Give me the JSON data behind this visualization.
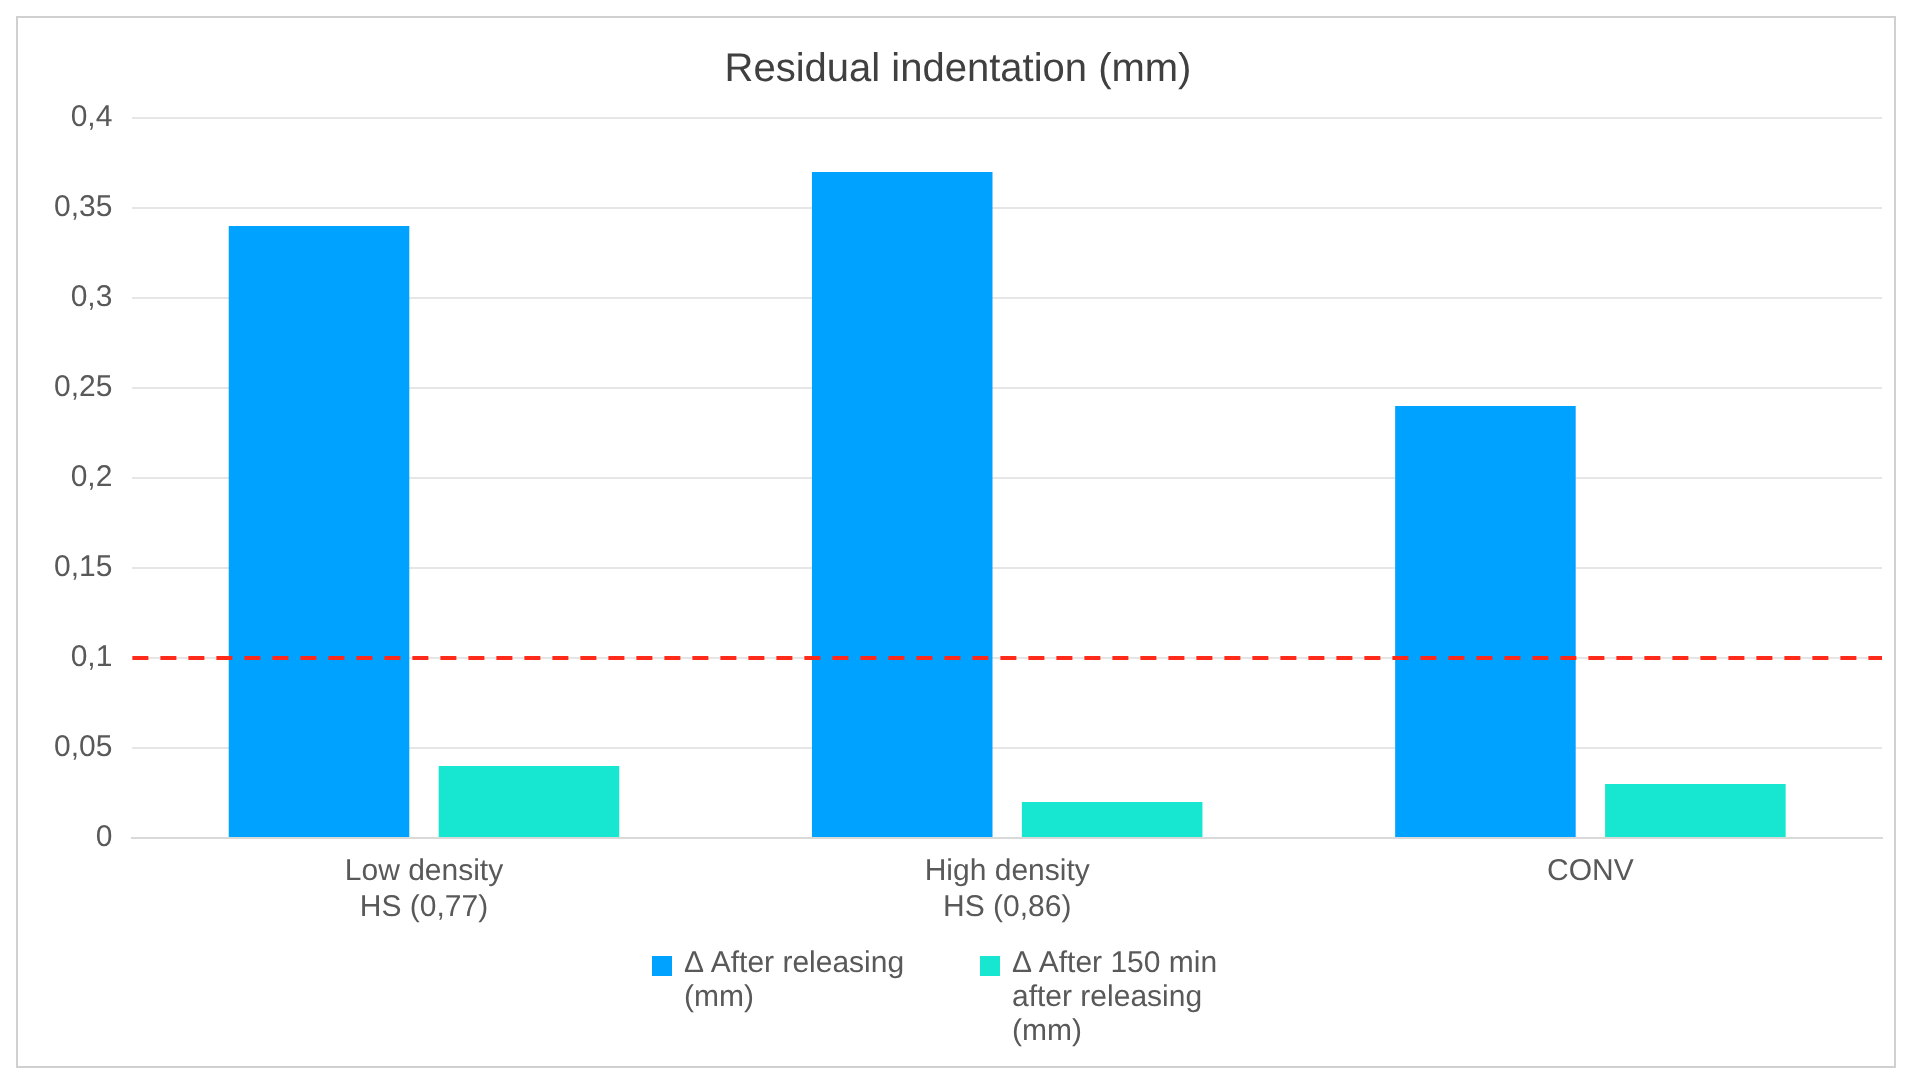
{
  "chart_data": {
    "type": "bar",
    "title": "Residual indentation (mm)",
    "categories": [
      "Low density\nHS (0,77)",
      "High density\nHS (0,86)",
      "CONV"
    ],
    "series": [
      {
        "name": "Δ After releasing (mm)",
        "color": "#00a2ff",
        "values": [
          0.34,
          0.37,
          0.24
        ]
      },
      {
        "name": "Δ After 150 min after releasing (mm)",
        "color": "#17e6d0",
        "values": [
          0.04,
          0.02,
          0.03
        ]
      }
    ],
    "ylim": [
      0,
      0.4
    ],
    "yticks": [
      {
        "value": 0,
        "label": "0"
      },
      {
        "value": 0.05,
        "label": "0,05"
      },
      {
        "value": 0.1,
        "label": "0,1"
      },
      {
        "value": 0.15,
        "label": "0,15"
      },
      {
        "value": 0.2,
        "label": "0,2"
      },
      {
        "value": 0.25,
        "label": "0,25"
      },
      {
        "value": 0.3,
        "label": "0,3"
      },
      {
        "value": 0.35,
        "label": "0,35"
      },
      {
        "value": 0.4,
        "label": "0,4"
      }
    ],
    "ref_lines": [
      {
        "axis": "y",
        "value": 0.1,
        "color": "#ff2a1a",
        "line_style": "dashed"
      }
    ],
    "grid": "y",
    "legend": "bottom"
  }
}
